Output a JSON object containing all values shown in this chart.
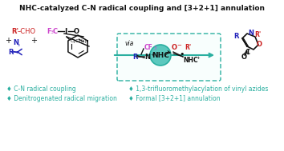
{
  "title": "NHC-catalyzed C-N radical coupling and [3+2+1] annulation",
  "teal": "#2aafa0",
  "teal_light": "#5cc8be",
  "magenta": "#cc44cc",
  "blue": "#2222bb",
  "red": "#cc2222",
  "black": "#111111",
  "bg": "#ffffff",
  "bullet_symbol": "♦",
  "bullet_items_left": [
    "C-N radical coupling",
    "Denitrogenated radical migration"
  ],
  "bullet_items_right": [
    "1,3-trifluoromethylacylation of vinyl azides",
    "Formal [3+2+1] annulation"
  ]
}
